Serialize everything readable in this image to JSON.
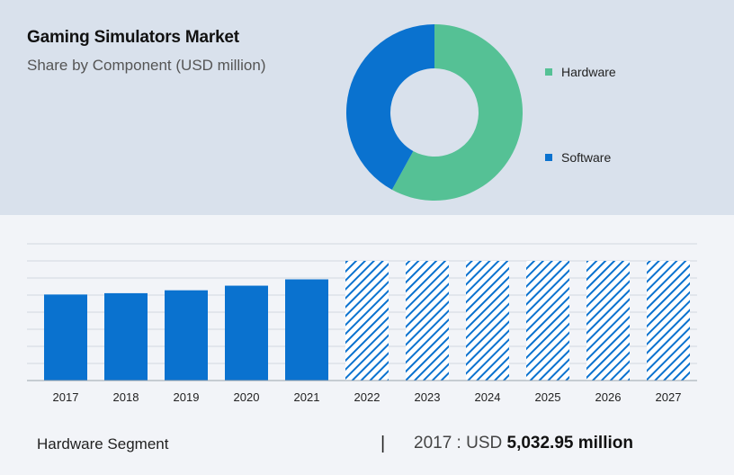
{
  "header": {
    "title": "Gaming Simulators Market",
    "subtitle": "Share by Component (USD million)"
  },
  "legend": {
    "items": [
      {
        "label": "Hardware",
        "color": "#55c195"
      },
      {
        "label": "Software",
        "color": "#0a72cf"
      }
    ]
  },
  "footer": {
    "segment_label": "Hardware Segment",
    "divider": "|",
    "year_prefix": "2017 : USD ",
    "amount": "5,032.95 million"
  },
  "colors": {
    "hardware": "#55c195",
    "software": "#0a72cf",
    "bar": "#0a72cf",
    "grid": "#d3d8df"
  },
  "chart_data": [
    {
      "type": "pie",
      "style": "donut",
      "categories": [
        "Hardware",
        "Software"
      ],
      "values": [
        58,
        42
      ]
    },
    {
      "type": "bar",
      "categories": [
        "2017",
        "2018",
        "2019",
        "2020",
        "2021",
        "2022",
        "2023",
        "2024",
        "2025",
        "2026",
        "2027"
      ],
      "values": [
        5032.95,
        5110,
        5280,
        5550,
        5920,
        7000,
        7000,
        7000,
        7000,
        7000,
        7000
      ],
      "forecast_from": "2022",
      "forecast_style": "hatched",
      "ylim": [
        0,
        8000
      ],
      "grid": true,
      "xlabel": "",
      "ylabel": ""
    }
  ]
}
